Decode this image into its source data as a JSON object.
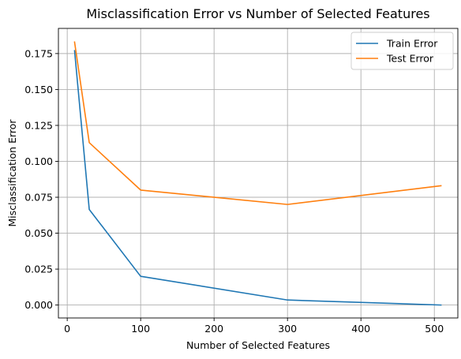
{
  "chart_data": {
    "type": "line",
    "title": "Misclassification Error vs Number of Selected Features",
    "xlabel": "Number of Selected Features",
    "ylabel": "Misclassification Error",
    "xlim": [
      -12,
      532
    ],
    "ylim": [
      -0.009,
      0.1925
    ],
    "xticks": [
      0,
      100,
      200,
      300,
      400,
      500
    ],
    "xtick_labels": [
      "0",
      "100",
      "200",
      "300",
      "400",
      "500"
    ],
    "yticks": [
      0.0,
      0.025,
      0.05,
      0.075,
      0.1,
      0.125,
      0.15,
      0.175
    ],
    "ytick_labels": [
      "0.000",
      "0.025",
      "0.050",
      "0.075",
      "0.100",
      "0.125",
      "0.150",
      "0.175"
    ],
    "grid": true,
    "legend_position": "top-right",
    "series": [
      {
        "name": "Train Error",
        "color": "#1f77b4",
        "x": [
          10,
          30,
          100,
          300,
          509
        ],
        "y": [
          0.177,
          0.0665,
          0.02,
          0.0035,
          0.0
        ]
      },
      {
        "name": "Test Error",
        "color": "#ff7f0e",
        "x": [
          10,
          30,
          100,
          300,
          509
        ],
        "y": [
          0.183,
          0.113,
          0.08,
          0.07,
          0.083
        ]
      }
    ]
  }
}
